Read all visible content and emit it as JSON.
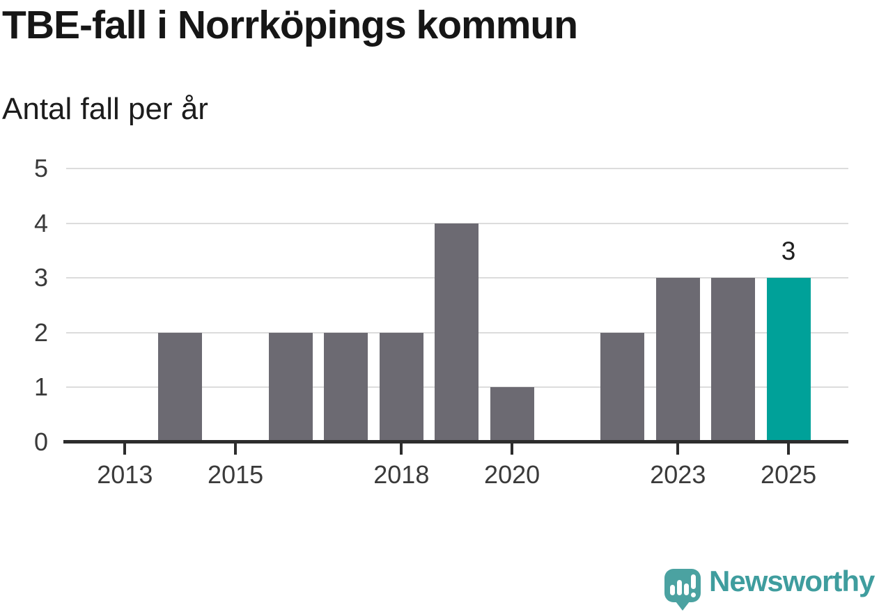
{
  "header": {
    "title": "TBE-fall i Norrköpings kommun",
    "subtitle": "Antal fall per år"
  },
  "chart_data": {
    "type": "bar",
    "title": "TBE-fall i Norrköpings kommun",
    "subtitle": "Antal fall per år",
    "categories": [
      2012,
      2013,
      2014,
      2015,
      2016,
      2017,
      2018,
      2019,
      2020,
      2021,
      2022,
      2023,
      2024,
      2025
    ],
    "values": [
      0,
      0,
      2,
      0,
      2,
      2,
      2,
      4,
      1,
      0,
      2,
      3,
      3,
      3
    ],
    "x_tick_labels": [
      "2013",
      "2015",
      "2018",
      "2020",
      "2023",
      "2025"
    ],
    "y_ticks": [
      0,
      1,
      2,
      3,
      4,
      5
    ],
    "ylim": [
      0,
      5
    ],
    "xlabel": "",
    "ylabel": "Antal fall per år",
    "grid": true,
    "legend_position": "none",
    "bar_color": "#6c6a72",
    "highlight_category": 2025,
    "highlight_color": "#00a199",
    "value_labels": [
      {
        "category": 2025,
        "text": "3"
      }
    ]
  },
  "footer": {
    "brand": "Newsworthy",
    "brand_color": "#3f9d9e",
    "logo_icon": "newsworthy-speech-bubble-bar-chart-icon",
    "logo_color": "#4ba2a1"
  }
}
